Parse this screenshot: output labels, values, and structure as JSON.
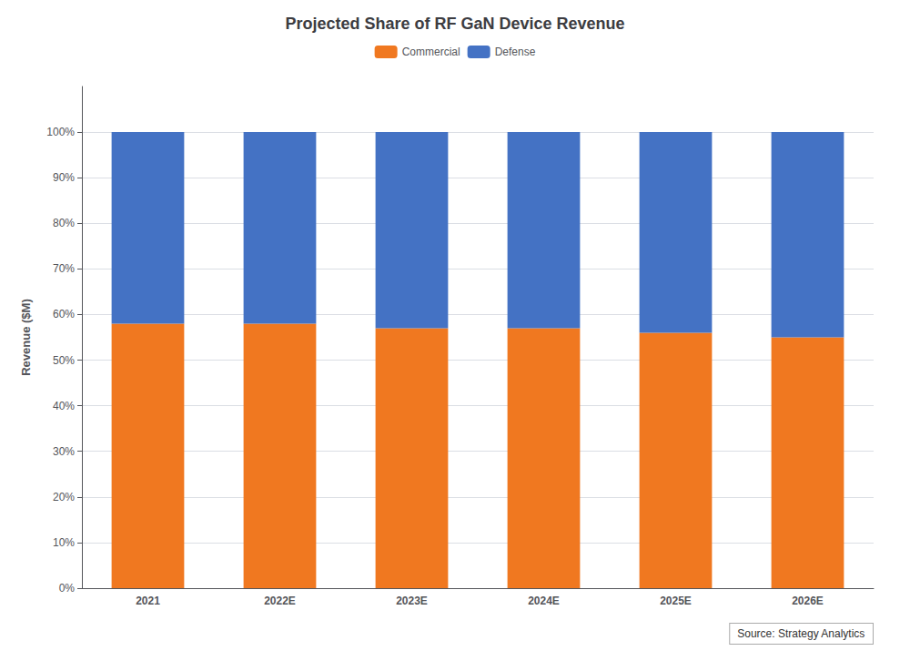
{
  "chart_data": {
    "type": "bar",
    "stacked": true,
    "title": "Projected Share of RF GaN Device Revenue",
    "ylabel": "Revenue ($M)",
    "categories": [
      "2021",
      "2022E",
      "2023E",
      "2024E",
      "2025E",
      "2026E"
    ],
    "series": [
      {
        "name": "Commercial",
        "color": "#F07820",
        "values": [
          58,
          58,
          57,
          57,
          56,
          55
        ]
      },
      {
        "name": "Defense",
        "color": "#4472C4",
        "values": [
          42,
          42,
          43,
          43,
          44,
          45
        ]
      }
    ],
    "ylim": [
      0,
      110
    ],
    "yticks": [
      {
        "value": 0,
        "label": "0%"
      },
      {
        "value": 10,
        "label": "10%"
      },
      {
        "value": 20,
        "label": "20%"
      },
      {
        "value": 30,
        "label": "30%"
      },
      {
        "value": 40,
        "label": "40%"
      },
      {
        "value": 50,
        "label": "50%"
      },
      {
        "value": 60,
        "label": "60%"
      },
      {
        "value": 70,
        "label": "70%"
      },
      {
        "value": 80,
        "label": "80%"
      },
      {
        "value": 90,
        "label": "90%"
      },
      {
        "value": 100,
        "label": "100%"
      }
    ],
    "grid": true,
    "legend": "top",
    "annotation": "Source: Strategy Analytics"
  }
}
